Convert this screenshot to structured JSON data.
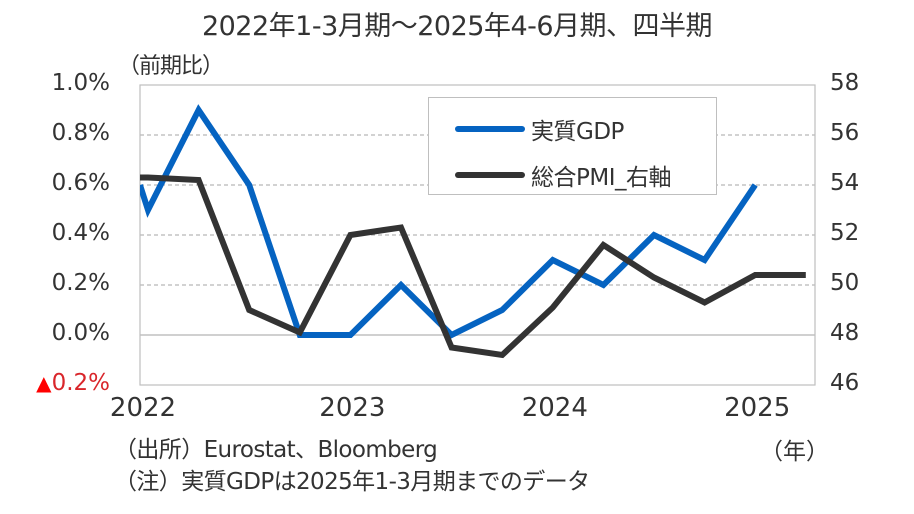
{
  "chart_data": {
    "type": "line",
    "title": "2022年1-3月期〜2025年4-6月期、四半期",
    "left_axis": {
      "unit_label": "（前期比）",
      "ylim": [
        -0.2,
        1.0
      ],
      "ticks": [
        {
          "value": 1.0,
          "label": "1.0%",
          "negative": false
        },
        {
          "value": 0.8,
          "label": "0.8%",
          "negative": false
        },
        {
          "value": 0.6,
          "label": "0.6%",
          "negative": false
        },
        {
          "value": 0.4,
          "label": "0.4%",
          "negative": false
        },
        {
          "value": 0.2,
          "label": "0.2%",
          "negative": false
        },
        {
          "value": 0.0,
          "label": "0.0%",
          "negative": false
        },
        {
          "value": -0.2,
          "label": "0.2%",
          "negative": true,
          "prefix": "▲"
        }
      ]
    },
    "right_axis": {
      "ylim": [
        46,
        58
      ],
      "ticks": [
        "58",
        "56",
        "54",
        "52",
        "50",
        "48",
        "46"
      ]
    },
    "x": [
      "2022Q1",
      "2022Q2",
      "2022Q3",
      "2022Q4",
      "2023Q1",
      "2023Q2",
      "2023Q3",
      "2023Q4",
      "2024Q1",
      "2024Q2",
      "2024Q3",
      "2024Q4",
      "2025Q1",
      "2025Q2"
    ],
    "x_tick_labels": [
      {
        "index": 0,
        "label": "2022"
      },
      {
        "index": 4,
        "label": "2023"
      },
      {
        "index": 8,
        "label": "2024"
      },
      {
        "index": 12,
        "label": "2025"
      }
    ],
    "x_unit_label": "（年）",
    "grid": true,
    "series": [
      {
        "name": "実質GDP",
        "axis": "left",
        "color": "#0563c1",
        "left_edge_value": 0.6,
        "values": [
          0.5,
          0.9,
          0.6,
          0.0,
          0.0,
          0.2,
          0.0,
          0.1,
          0.3,
          0.2,
          0.4,
          0.3,
          0.6,
          null
        ]
      },
      {
        "name": "総合PMI_右軸",
        "axis": "right",
        "color": "#333333",
        "left_edge_value": 54.3,
        "values": [
          54.3,
          54.2,
          49.0,
          48.1,
          52.0,
          52.3,
          47.5,
          47.2,
          49.1,
          51.6,
          50.3,
          49.3,
          50.4,
          50.4
        ]
      }
    ],
    "legend_placement": "top-right",
    "negative_color": "#d9262b",
    "notes": [
      "（出所）Eurostat、Bloomberg",
      "（注）実質GDPは2025年1-3月期までのデータ"
    ]
  }
}
